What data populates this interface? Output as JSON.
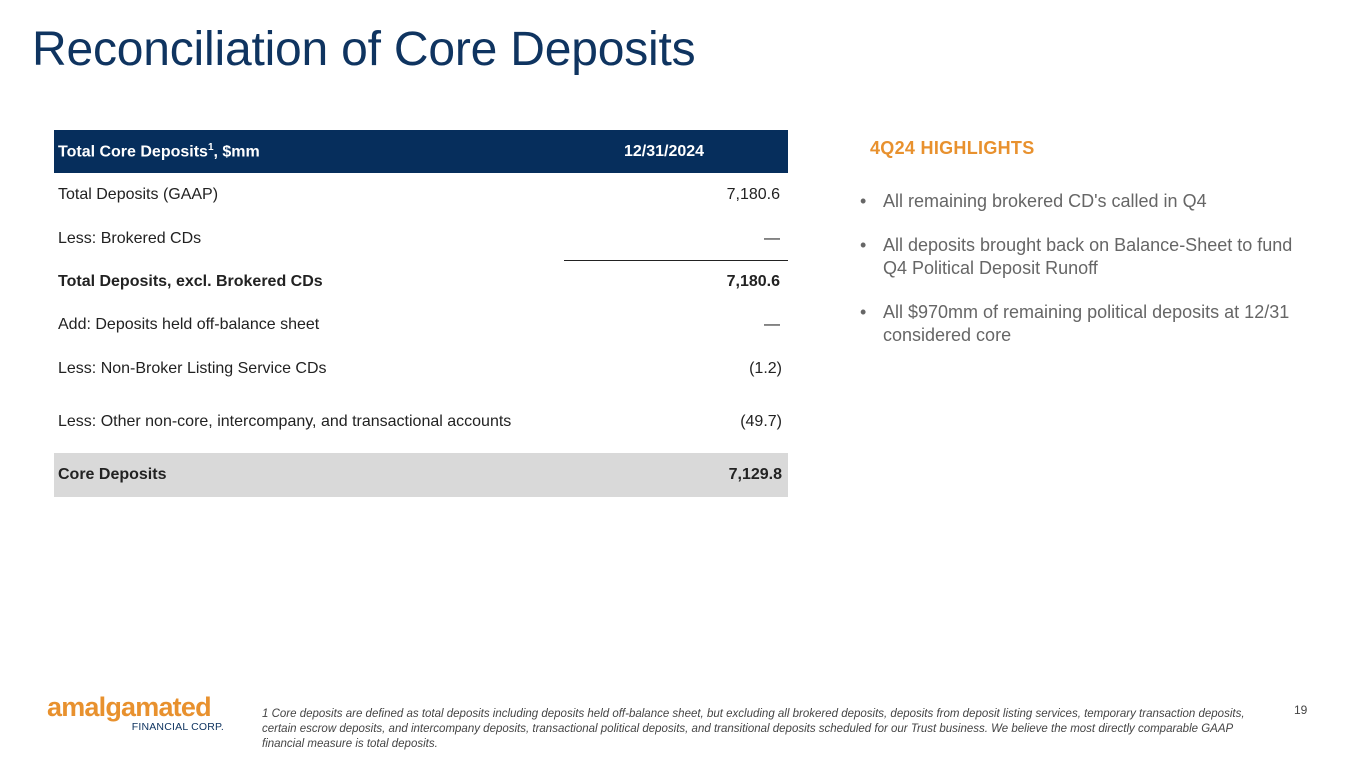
{
  "title": "Reconciliation of Core Deposits",
  "table": {
    "header": {
      "label": "Total Core Deposits",
      "sup": "1",
      "suffix": ", $mm",
      "date": "12/31/2024"
    },
    "rows": [
      {
        "label": "Total Deposits (GAAP)",
        "value": "7,180.6"
      },
      {
        "label": "Less: Brokered CDs",
        "value": "—"
      },
      {
        "label": "Total Deposits, excl. Brokered CDs",
        "value": "7,180.6"
      },
      {
        "label": "Add: Deposits held off-balance sheet",
        "value": "—"
      },
      {
        "label": "Less: Non-Broker Listing Service CDs",
        "value": "(1.2)"
      },
      {
        "label": "Less: Other non-core, intercompany, and transactional accounts",
        "value": "(49.7)"
      },
      {
        "label": "Core Deposits",
        "value": "7,129.8"
      }
    ]
  },
  "highlights": {
    "title": "4Q24 HIGHLIGHTS",
    "items": [
      "All remaining brokered CD's called in Q4",
      "All deposits brought back on Balance-Sheet to fund Q4 Political Deposit Runoff",
      "All $970mm of remaining political deposits at 12/31 considered core"
    ]
  },
  "logo": {
    "main": "amalgamated",
    "sub": "FINANCIAL CORP."
  },
  "footnote": "1 Core deposits are defined as total deposits including deposits held off-balance sheet, but excluding all brokered deposits, deposits from deposit listing services, temporary transaction deposits, certain escrow deposits, and intercompany deposits, transactional political deposits, and transitional deposits scheduled for our Trust business. We believe the most directly comparable GAAP financial measure is total deposits.",
  "page_number": "19",
  "colors": {
    "navy": "#062e5c",
    "title": "#0f3460",
    "orange": "#e8912e",
    "shade": "#d9d9d9"
  }
}
